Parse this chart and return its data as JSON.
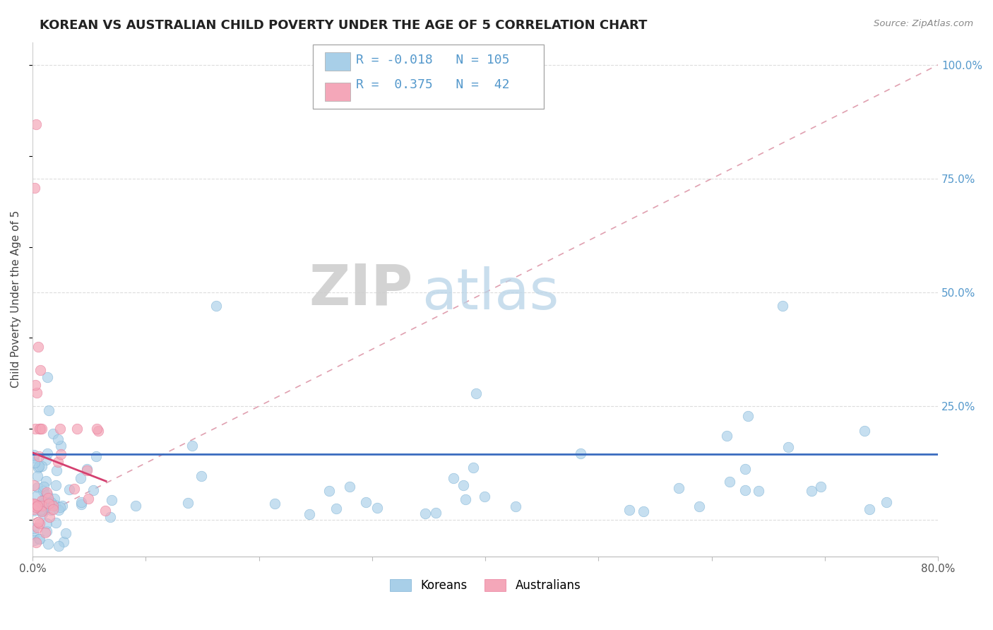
{
  "title": "KOREAN VS AUSTRALIAN CHILD POVERTY UNDER THE AGE OF 5 CORRELATION CHART",
  "source": "Source: ZipAtlas.com",
  "ylabel": "Child Poverty Under the Age of 5",
  "xlim": [
    0.0,
    0.8
  ],
  "ylim": [
    -0.08,
    1.05
  ],
  "xticks": [
    0.0,
    0.1,
    0.2,
    0.3,
    0.4,
    0.5,
    0.6,
    0.7,
    0.8
  ],
  "xtick_labels": [
    "0.0%",
    "",
    "",
    "",
    "",
    "",
    "",
    "",
    "80.0%"
  ],
  "ytick_positions": [
    0.0,
    0.25,
    0.5,
    0.75,
    1.0
  ],
  "ytick_labels_right": [
    "",
    "25.0%",
    "50.0%",
    "75.0%",
    "100.0%"
  ],
  "korean_R": -0.018,
  "korean_N": 105,
  "australian_R": 0.375,
  "australian_N": 42,
  "korean_color": "#a8cfe8",
  "australian_color": "#f4a7b9",
  "korean_edge_color": "#7ab0d4",
  "australian_edge_color": "#e87a99",
  "korean_line_color": "#3a6bbf",
  "australian_line_color": "#d44070",
  "diag_line_color": "#e0a0b0",
  "background_color": "#ffffff",
  "watermark_ZIP": "ZIP",
  "watermark_atlas": "atlas",
  "title_fontsize": 13,
  "axis_label_fontsize": 11,
  "legend_fontsize": 13,
  "right_tick_color": "#5599cc",
  "grid_color": "#dddddd"
}
